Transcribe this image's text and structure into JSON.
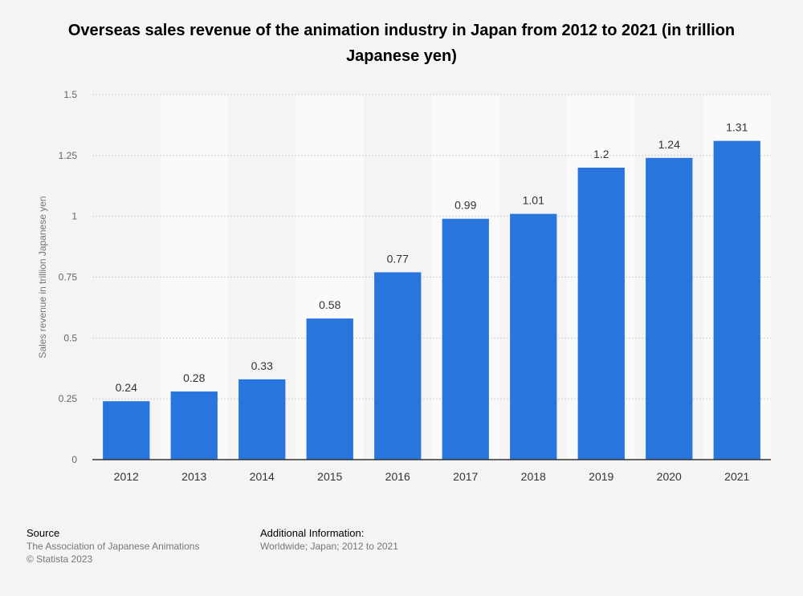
{
  "chart_data": {
    "type": "bar",
    "title": "Overseas sales revenue of the animation industry in Japan from 2012 to 2021 (in trillion Japanese yen)",
    "ylabel": "Sales revenue in trillion Japanese yen",
    "xlabel": "",
    "categories": [
      "2012",
      "2013",
      "2014",
      "2015",
      "2016",
      "2017",
      "2018",
      "2019",
      "2020",
      "2021"
    ],
    "values": [
      0.24,
      0.28,
      0.33,
      0.58,
      0.77,
      0.99,
      1.01,
      1.2,
      1.24,
      1.31
    ],
    "value_labels": [
      "0.24",
      "0.28",
      "0.33",
      "0.58",
      "0.77",
      "0.99",
      "1.01",
      "1.2",
      "1.24",
      "1.31"
    ],
    "ylim": [
      0,
      1.5
    ],
    "yticks": [
      0,
      0.25,
      0.5,
      0.75,
      1,
      1.25,
      1.5
    ],
    "ytick_labels": [
      "0",
      "0.25",
      "0.5",
      "0.75",
      "1",
      "1.25",
      "1.5"
    ],
    "grid": true,
    "bar_color": "#2876dd"
  },
  "footer": {
    "source_heading": "Source",
    "source_line1": "The Association of Japanese Animations",
    "source_line2": "© Statista 2023",
    "info_heading": "Additional Information:",
    "info_line1": "Worldwide; Japan; 2012 to 2021"
  }
}
